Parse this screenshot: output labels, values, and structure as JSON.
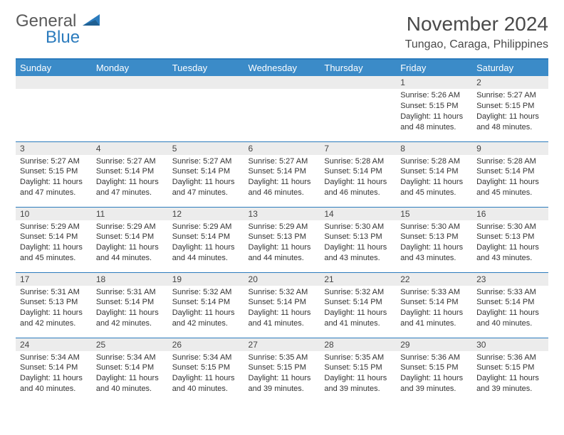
{
  "logo": {
    "line1": "General",
    "line2": "Blue"
  },
  "title": {
    "month": "November 2024",
    "location": "Tungao, Caraga, Philippines"
  },
  "colors": {
    "header_bg": "#3b8bc8",
    "header_text": "#ffffff",
    "border": "#2b7bbd",
    "daynum_bg": "#ececec",
    "text": "#333333",
    "logo_gray": "#5a5a5a",
    "logo_blue": "#2b7bbd"
  },
  "typography": {
    "base_font": "Arial",
    "title_fontsize": 28,
    "loc_fontsize": 16,
    "dayhead_fontsize": 13,
    "body_fontsize": 11
  },
  "day_headers": [
    "Sunday",
    "Monday",
    "Tuesday",
    "Wednesday",
    "Thursday",
    "Friday",
    "Saturday"
  ],
  "weeks": [
    [
      {
        "empty": true
      },
      {
        "empty": true
      },
      {
        "empty": true
      },
      {
        "empty": true
      },
      {
        "empty": true
      },
      {
        "day": "1",
        "sunrise": "Sunrise: 5:26 AM",
        "sunset": "Sunset: 5:15 PM",
        "daylight": "Daylight: 11 hours and 48 minutes."
      },
      {
        "day": "2",
        "sunrise": "Sunrise: 5:27 AM",
        "sunset": "Sunset: 5:15 PM",
        "daylight": "Daylight: 11 hours and 48 minutes."
      }
    ],
    [
      {
        "day": "3",
        "sunrise": "Sunrise: 5:27 AM",
        "sunset": "Sunset: 5:15 PM",
        "daylight": "Daylight: 11 hours and 47 minutes."
      },
      {
        "day": "4",
        "sunrise": "Sunrise: 5:27 AM",
        "sunset": "Sunset: 5:14 PM",
        "daylight": "Daylight: 11 hours and 47 minutes."
      },
      {
        "day": "5",
        "sunrise": "Sunrise: 5:27 AM",
        "sunset": "Sunset: 5:14 PM",
        "daylight": "Daylight: 11 hours and 47 minutes."
      },
      {
        "day": "6",
        "sunrise": "Sunrise: 5:27 AM",
        "sunset": "Sunset: 5:14 PM",
        "daylight": "Daylight: 11 hours and 46 minutes."
      },
      {
        "day": "7",
        "sunrise": "Sunrise: 5:28 AM",
        "sunset": "Sunset: 5:14 PM",
        "daylight": "Daylight: 11 hours and 46 minutes."
      },
      {
        "day": "8",
        "sunrise": "Sunrise: 5:28 AM",
        "sunset": "Sunset: 5:14 PM",
        "daylight": "Daylight: 11 hours and 45 minutes."
      },
      {
        "day": "9",
        "sunrise": "Sunrise: 5:28 AM",
        "sunset": "Sunset: 5:14 PM",
        "daylight": "Daylight: 11 hours and 45 minutes."
      }
    ],
    [
      {
        "day": "10",
        "sunrise": "Sunrise: 5:29 AM",
        "sunset": "Sunset: 5:14 PM",
        "daylight": "Daylight: 11 hours and 45 minutes."
      },
      {
        "day": "11",
        "sunrise": "Sunrise: 5:29 AM",
        "sunset": "Sunset: 5:14 PM",
        "daylight": "Daylight: 11 hours and 44 minutes."
      },
      {
        "day": "12",
        "sunrise": "Sunrise: 5:29 AM",
        "sunset": "Sunset: 5:14 PM",
        "daylight": "Daylight: 11 hours and 44 minutes."
      },
      {
        "day": "13",
        "sunrise": "Sunrise: 5:29 AM",
        "sunset": "Sunset: 5:13 PM",
        "daylight": "Daylight: 11 hours and 44 minutes."
      },
      {
        "day": "14",
        "sunrise": "Sunrise: 5:30 AM",
        "sunset": "Sunset: 5:13 PM",
        "daylight": "Daylight: 11 hours and 43 minutes."
      },
      {
        "day": "15",
        "sunrise": "Sunrise: 5:30 AM",
        "sunset": "Sunset: 5:13 PM",
        "daylight": "Daylight: 11 hours and 43 minutes."
      },
      {
        "day": "16",
        "sunrise": "Sunrise: 5:30 AM",
        "sunset": "Sunset: 5:13 PM",
        "daylight": "Daylight: 11 hours and 43 minutes."
      }
    ],
    [
      {
        "day": "17",
        "sunrise": "Sunrise: 5:31 AM",
        "sunset": "Sunset: 5:13 PM",
        "daylight": "Daylight: 11 hours and 42 minutes."
      },
      {
        "day": "18",
        "sunrise": "Sunrise: 5:31 AM",
        "sunset": "Sunset: 5:14 PM",
        "daylight": "Daylight: 11 hours and 42 minutes."
      },
      {
        "day": "19",
        "sunrise": "Sunrise: 5:32 AM",
        "sunset": "Sunset: 5:14 PM",
        "daylight": "Daylight: 11 hours and 42 minutes."
      },
      {
        "day": "20",
        "sunrise": "Sunrise: 5:32 AM",
        "sunset": "Sunset: 5:14 PM",
        "daylight": "Daylight: 11 hours and 41 minutes."
      },
      {
        "day": "21",
        "sunrise": "Sunrise: 5:32 AM",
        "sunset": "Sunset: 5:14 PM",
        "daylight": "Daylight: 11 hours and 41 minutes."
      },
      {
        "day": "22",
        "sunrise": "Sunrise: 5:33 AM",
        "sunset": "Sunset: 5:14 PM",
        "daylight": "Daylight: 11 hours and 41 minutes."
      },
      {
        "day": "23",
        "sunrise": "Sunrise: 5:33 AM",
        "sunset": "Sunset: 5:14 PM",
        "daylight": "Daylight: 11 hours and 40 minutes."
      }
    ],
    [
      {
        "day": "24",
        "sunrise": "Sunrise: 5:34 AM",
        "sunset": "Sunset: 5:14 PM",
        "daylight": "Daylight: 11 hours and 40 minutes."
      },
      {
        "day": "25",
        "sunrise": "Sunrise: 5:34 AM",
        "sunset": "Sunset: 5:14 PM",
        "daylight": "Daylight: 11 hours and 40 minutes."
      },
      {
        "day": "26",
        "sunrise": "Sunrise: 5:34 AM",
        "sunset": "Sunset: 5:15 PM",
        "daylight": "Daylight: 11 hours and 40 minutes."
      },
      {
        "day": "27",
        "sunrise": "Sunrise: 5:35 AM",
        "sunset": "Sunset: 5:15 PM",
        "daylight": "Daylight: 11 hours and 39 minutes."
      },
      {
        "day": "28",
        "sunrise": "Sunrise: 5:35 AM",
        "sunset": "Sunset: 5:15 PM",
        "daylight": "Daylight: 11 hours and 39 minutes."
      },
      {
        "day": "29",
        "sunrise": "Sunrise: 5:36 AM",
        "sunset": "Sunset: 5:15 PM",
        "daylight": "Daylight: 11 hours and 39 minutes."
      },
      {
        "day": "30",
        "sunrise": "Sunrise: 5:36 AM",
        "sunset": "Sunset: 5:15 PM",
        "daylight": "Daylight: 11 hours and 39 minutes."
      }
    ]
  ]
}
